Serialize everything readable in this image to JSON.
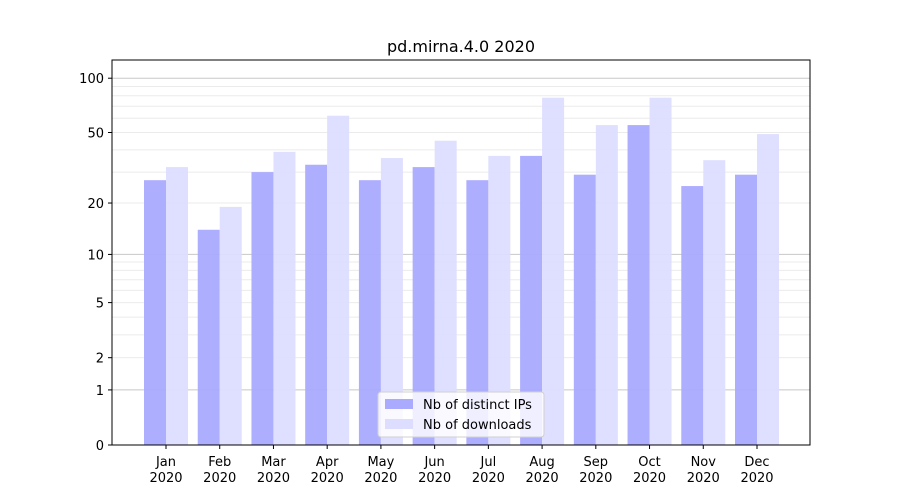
{
  "chart_data": {
    "type": "bar",
    "title": "pd.mirna.4.0 2020",
    "xlabel": "",
    "ylabel": "",
    "yscale": "symlog",
    "ylim": [
      0,
      126
    ],
    "yticks": [
      0,
      1,
      2,
      5,
      10,
      20,
      50,
      100
    ],
    "grid": true,
    "legend_placement": "lower center",
    "categories": [
      "Jan\n2020",
      "Feb\n2020",
      "Mar\n2020",
      "Apr\n2020",
      "May\n2020",
      "Jun\n2020",
      "Jul\n2020",
      "Aug\n2020",
      "Sep\n2020",
      "Oct\n2020",
      "Nov\n2020",
      "Dec\n2020"
    ],
    "series": [
      {
        "name": "Nb of distinct IPs",
        "color": "#aaaaff",
        "values": [
          27,
          14,
          30,
          33,
          27,
          32,
          27,
          37,
          29,
          55,
          25,
          29
        ]
      },
      {
        "name": "Nb of downloads",
        "color": "#ddddff",
        "values": [
          32,
          19,
          39,
          62,
          36,
          45,
          37,
          78,
          55,
          78,
          35,
          49
        ]
      }
    ]
  }
}
